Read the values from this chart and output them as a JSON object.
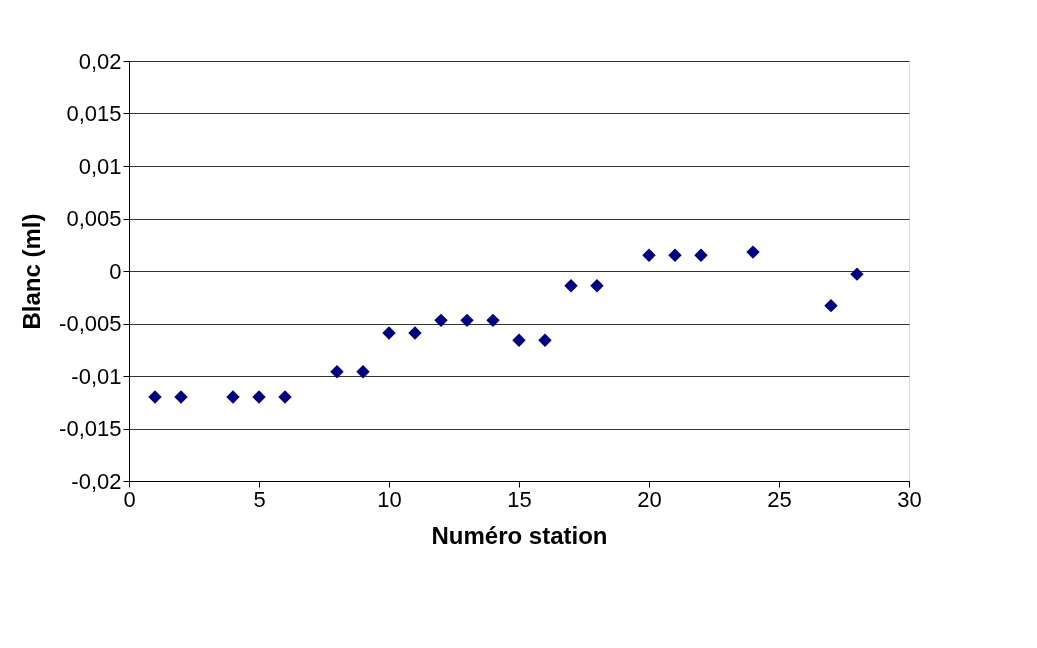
{
  "chart_data": {
    "type": "scatter",
    "xlabel": "Numéro station",
    "ylabel": "Blanc (ml)",
    "x": [
      1,
      2,
      4,
      5,
      6,
      8,
      9,
      10,
      11,
      12,
      13,
      14,
      15,
      16,
      17,
      18,
      20,
      21,
      22,
      24,
      27,
      28
    ],
    "series": [
      {
        "color": "#000080",
        "values": [
          -0.012,
          -0.012,
          -0.012,
          -0.012,
          -0.012,
          -0.0096,
          -0.0096,
          -0.0059,
          -0.0059,
          -0.0047,
          -0.0047,
          -0.0047,
          -0.0066,
          -0.0066,
          -0.0014,
          -0.0014,
          0.0015,
          0.0015,
          0.0015,
          0.0018,
          -0.0033,
          -0.0003
        ]
      }
    ],
    "xlim": [
      0,
      30
    ],
    "xticks": [
      0,
      5,
      10,
      15,
      20,
      25,
      30
    ],
    "ylim": [
      -0.02,
      0.02
    ],
    "yticks": [
      {
        "value": -0.02,
        "label": "-0,02"
      },
      {
        "value": -0.015,
        "label": "-0,015"
      },
      {
        "value": -0.01,
        "label": "-0,01"
      },
      {
        "value": -0.005,
        "label": "-0,005"
      },
      {
        "value": 0,
        "label": "0"
      },
      {
        "value": 0.005,
        "label": "0,005"
      },
      {
        "value": 0.01,
        "label": "0,01"
      },
      {
        "value": 0.015,
        "label": "0,015"
      },
      {
        "value": 0.02,
        "label": "0,02"
      }
    ],
    "grid": "y",
    "marker": "diamond"
  }
}
